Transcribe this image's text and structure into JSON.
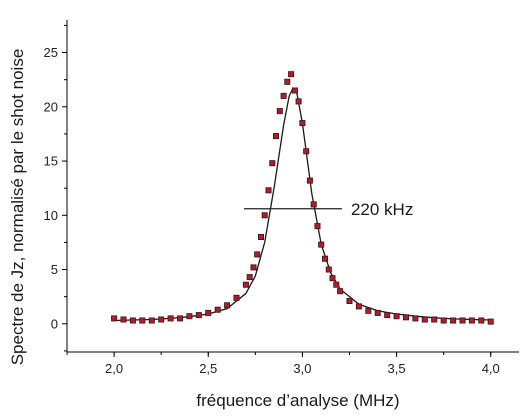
{
  "chart_data": {
    "type": "scatter",
    "xlabel": "fréquence d’analyse (MHz)",
    "ylabel": "Spectre de Jz, normalisé par le shot noise",
    "xlim": [
      1.75,
      4.15
    ],
    "ylim": [
      -2.6,
      28
    ],
    "x_ticks": [
      2.0,
      2.5,
      3.0,
      3.5,
      4.0
    ],
    "x_tick_labels": [
      "2,0",
      "2,5",
      "3,0",
      "3,5",
      "4,0"
    ],
    "y_ticks": [
      0,
      5,
      10,
      15,
      20,
      25
    ],
    "y_tick_labels": [
      "0",
      "5",
      "10",
      "15",
      "20",
      "25"
    ],
    "grid": false,
    "legend": "none",
    "series": [
      {
        "kind": "markers",
        "marker_color": "#b01c2c",
        "marker_edge": "#3a1416",
        "x": [
          2.0,
          2.05,
          2.1,
          2.15,
          2.2,
          2.25,
          2.3,
          2.35,
          2.4,
          2.45,
          2.5,
          2.55,
          2.6,
          2.65,
          2.7,
          2.72,
          2.74,
          2.76,
          2.78,
          2.8,
          2.82,
          2.84,
          2.86,
          2.88,
          2.9,
          2.92,
          2.94,
          2.96,
          2.98,
          3.0,
          3.02,
          3.04,
          3.06,
          3.08,
          3.1,
          3.12,
          3.14,
          3.16,
          3.18,
          3.2,
          3.25,
          3.3,
          3.35,
          3.4,
          3.45,
          3.5,
          3.55,
          3.6,
          3.65,
          3.7,
          3.75,
          3.8,
          3.85,
          3.9,
          3.95,
          4.0
        ],
        "y": [
          0.5,
          0.4,
          0.3,
          0.3,
          0.3,
          0.4,
          0.5,
          0.5,
          0.7,
          0.8,
          1.0,
          1.3,
          1.7,
          2.4,
          3.6,
          4.3,
          5.2,
          6.4,
          8.0,
          10.0,
          12.3,
          14.8,
          17.3,
          19.6,
          21.0,
          22.3,
          23.0,
          21.5,
          20.5,
          18.5,
          15.9,
          13.2,
          11.0,
          9.0,
          7.3,
          6.0,
          5.0,
          4.2,
          3.6,
          3.0,
          2.1,
          1.6,
          1.2,
          1.0,
          0.8,
          0.7,
          0.6,
          0.5,
          0.4,
          0.4,
          0.3,
          0.3,
          0.3,
          0.3,
          0.3,
          0.2
        ]
      },
      {
        "kind": "fit-line",
        "line_color": "#1a1a1a",
        "x": [
          2.0,
          2.1,
          2.2,
          2.3,
          2.4,
          2.5,
          2.6,
          2.7,
          2.75,
          2.8,
          2.85,
          2.9,
          2.93,
          2.95,
          2.97,
          3.0,
          3.05,
          3.1,
          3.15,
          3.2,
          3.3,
          3.4,
          3.5,
          3.6,
          3.7,
          3.8,
          3.9,
          4.0
        ],
        "y": [
          0.3,
          0.35,
          0.4,
          0.5,
          0.65,
          0.9,
          1.4,
          2.8,
          4.4,
          7.5,
          12.6,
          18.3,
          21.0,
          21.7,
          21.3,
          18.5,
          12.0,
          7.3,
          4.7,
          3.2,
          1.8,
          1.2,
          0.9,
          0.7,
          0.55,
          0.45,
          0.4,
          0.35
        ]
      }
    ],
    "annotations": [
      {
        "text": "220 kHz",
        "x_start": 2.69,
        "x_end": 3.21,
        "y": 10.6
      }
    ]
  }
}
